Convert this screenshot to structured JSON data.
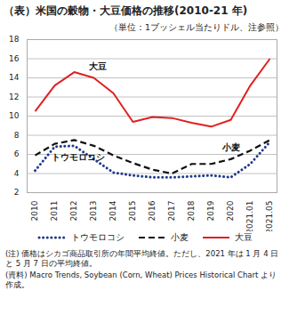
{
  "chart_data": {
    "type": "line",
    "title": "（表）米国の穀物・大豆価格の推移(2010-21 年)",
    "subtitle": "（単位：1ブッシェル当たりドル、注参照）",
    "notes": [
      "(注) 価格はシカゴ商品取引所の年間平均終値。ただし、2021 年は 1 月 4 日と 5 月 7 日の平均終値。",
      "(資料) Macro Trends, Soybean (Corn, Wheat) Prices Historical Chart より作成。"
    ],
    "categories": [
      "2010",
      "2011",
      "2012",
      "2013",
      "2014",
      "2015",
      "2016",
      "2017",
      "2018",
      "2019",
      "2020",
      "2021.01",
      "2021.05"
    ],
    "series": [
      {
        "name": "トウモロコシ",
        "color": "#1f3a8a",
        "line_style": "dotted",
        "values": [
          4.3,
          6.8,
          6.9,
          5.5,
          4.1,
          3.8,
          3.6,
          3.6,
          3.7,
          3.8,
          3.6,
          5.0,
          7.3
        ]
      },
      {
        "name": "小麦",
        "color": "#111111",
        "line_style": "dashed",
        "values": [
          5.9,
          7.1,
          7.5,
          6.9,
          5.9,
          5.1,
          4.4,
          4.0,
          5.0,
          5.0,
          5.5,
          6.4,
          7.5
        ]
      },
      {
        "name": "大豆",
        "color": "#e02020",
        "line_style": "solid",
        "values": [
          10.5,
          13.2,
          14.6,
          14.0,
          12.4,
          9.4,
          9.9,
          9.8,
          9.3,
          8.9,
          9.6,
          13.2,
          16.0
        ]
      }
    ],
    "ylim": [
      2,
      18
    ],
    "yticks": [
      2,
      4,
      6,
      8,
      10,
      12,
      14,
      16,
      18
    ],
    "grid": true,
    "legend": "bottom"
  }
}
